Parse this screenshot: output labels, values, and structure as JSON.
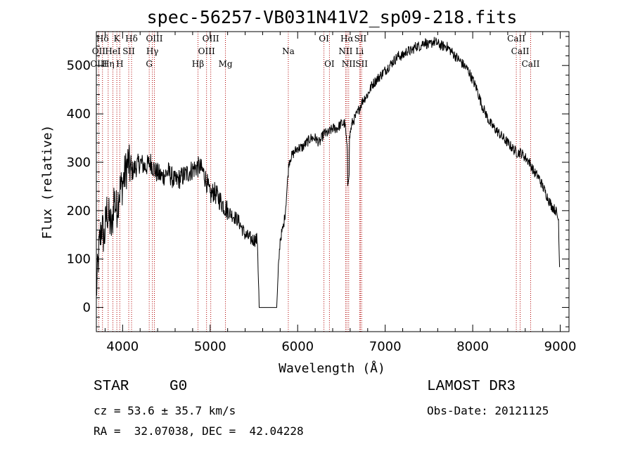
{
  "chart_data": {
    "type": "line",
    "title": "spec-56257-VB031N41V2_sp09-218.fits",
    "xlabel": "Wavelength (Å)",
    "ylabel": "Flux (relative)",
    "xlim": [
      3700,
      9100
    ],
    "ylim": [
      -50,
      570
    ],
    "xticks": [
      4000,
      5000,
      6000,
      7000,
      8000,
      9000
    ],
    "yticks": [
      0,
      100,
      200,
      300,
      400,
      500
    ],
    "grid": false,
    "spectrum_anchors": {
      "x": [
        3700,
        3730,
        3760,
        3790,
        3820,
        3850,
        3880,
        3900,
        3930,
        3960,
        3990,
        4020,
        4060,
        4100,
        4150,
        4200,
        4260,
        4320,
        4380,
        4450,
        4520,
        4600,
        4680,
        4760,
        4840,
        4880,
        4920,
        4960,
        5000,
        5040,
        5080,
        5120,
        5160,
        5200,
        5260,
        5320,
        5400,
        5480,
        5540,
        5560,
        5600,
        5700,
        5760,
        5780,
        5800,
        5840,
        5860,
        5900,
        5920,
        5960,
        6000,
        6050,
        6100,
        6150,
        6200,
        6250,
        6300,
        6350,
        6400,
        6450,
        6500,
        6540,
        6560,
        6570,
        6580,
        6600,
        6620,
        6650,
        6680,
        6700,
        6750,
        6800,
        6850,
        6900,
        6950,
        7000,
        7050,
        7100,
        7150,
        7200,
        7250,
        7300,
        7350,
        7400,
        7450,
        7500,
        7550,
        7600,
        7650,
        7700,
        7750,
        7800,
        7850,
        7900,
        7950,
        8000,
        8050,
        8100,
        8150,
        8200,
        8250,
        8300,
        8350,
        8400,
        8450,
        8500,
        8550,
        8600,
        8650,
        8700,
        8750,
        8800,
        8850,
        8900,
        8950,
        8980,
        8995
      ],
      "y": [
        30,
        120,
        170,
        140,
        200,
        180,
        160,
        230,
        200,
        240,
        250,
        270,
        300,
        280,
        290,
        300,
        290,
        300,
        280,
        270,
        280,
        260,
        270,
        280,
        290,
        290,
        280,
        260,
        230,
        240,
        230,
        220,
        210,
        200,
        190,
        180,
        150,
        140,
        140,
        0,
        0,
        0,
        0,
        80,
        140,
        170,
        200,
        300,
        310,
        320,
        330,
        330,
        340,
        350,
        350,
        340,
        360,
        360,
        370,
        370,
        380,
        380,
        340,
        310,
        330,
        360,
        380,
        390,
        400,
        410,
        430,
        440,
        460,
        470,
        480,
        490,
        500,
        510,
        520,
        520,
        530,
        530,
        540,
        540,
        550,
        540,
        550,
        545,
        540,
        540,
        530,
        520,
        510,
        500,
        490,
        470,
        450,
        420,
        400,
        380,
        370,
        360,
        350,
        340,
        330,
        320,
        320,
        310,
        300,
        280,
        270,
        250,
        230,
        210,
        200,
        180,
        60
      ]
    },
    "annotations": [
      {
        "label": "Hδ",
        "x": 3770,
        "row": 0
      },
      {
        "label": "K",
        "x": 3934,
        "row": 0
      },
      {
        "label": "Hδ",
        "x": 4102,
        "row": 0
      },
      {
        "label": "OIII",
        "x": 4363,
        "row": 0
      },
      {
        "label": "OIII",
        "x": 5007,
        "row": 0
      },
      {
        "label": "OI",
        "x": 6300,
        "row": 0
      },
      {
        "label": "Hα",
        "x": 6563,
        "row": 0
      },
      {
        "label": "SII",
        "x": 6717,
        "row": 0
      },
      {
        "label": "CaII",
        "x": 8498,
        "row": 0
      },
      {
        "label": "OII",
        "x": 3727,
        "row": 1
      },
      {
        "label": "HeI",
        "x": 3889,
        "row": 1
      },
      {
        "label": "SII",
        "x": 4070,
        "row": 1
      },
      {
        "label": "Hγ",
        "x": 4340,
        "row": 1
      },
      {
        "label": "OIII",
        "x": 4959,
        "row": 1
      },
      {
        "label": "Na",
        "x": 5893,
        "row": 1
      },
      {
        "label": "NII",
        "x": 6548,
        "row": 1
      },
      {
        "label": "Li",
        "x": 6708,
        "row": 1
      },
      {
        "label": "CaII",
        "x": 8542,
        "row": 1
      },
      {
        "label": "OIII",
        "x": 3727,
        "row": 2
      },
      {
        "label": "Hη",
        "x": 3835,
        "row": 2
      },
      {
        "label": "H",
        "x": 3968,
        "row": 2
      },
      {
        "label": "G",
        "x": 4304,
        "row": 2
      },
      {
        "label": "Hβ",
        "x": 4861,
        "row": 2
      },
      {
        "label": "Mg",
        "x": 5175,
        "row": 2
      },
      {
        "label": "OI",
        "x": 6363,
        "row": 2
      },
      {
        "label": "NII",
        "x": 6583,
        "row": 2
      },
      {
        "label": "SII",
        "x": 6731,
        "row": 2
      },
      {
        "label": "CaII",
        "x": 8662,
        "row": 2
      }
    ],
    "vlines_x": [
      3727,
      3770,
      3835,
      3889,
      3934,
      3968,
      4070,
      4102,
      4304,
      4340,
      4363,
      4861,
      4959,
      5007,
      5175,
      5893,
      6300,
      6363,
      6548,
      6563,
      6583,
      6708,
      6717,
      6731,
      8498,
      8542,
      8662
    ],
    "info": {
      "class": "STAR",
      "subclass": "G0",
      "survey": "LAMOST DR3",
      "cz": "cz = 53.6 ± 35.7 km/s",
      "obs_date": "Obs-Date: 20121125",
      "coords": "RA =  32.07038, DEC =  42.04228"
    }
  }
}
